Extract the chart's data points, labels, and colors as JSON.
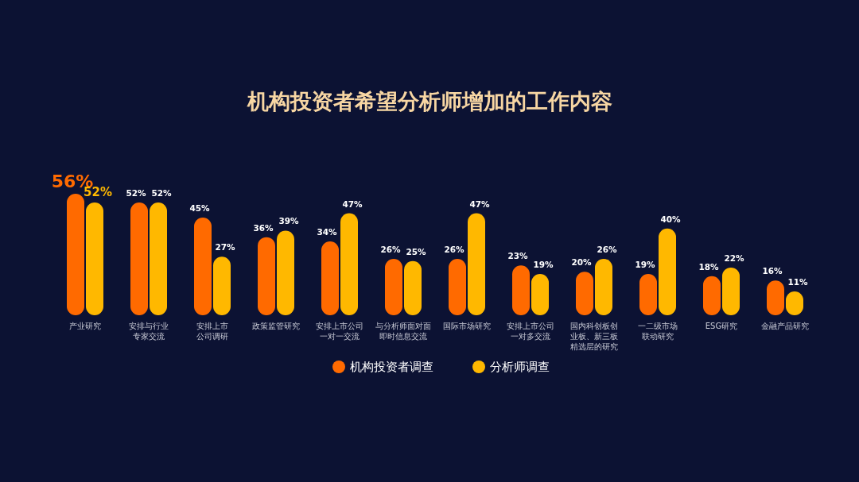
{
  "chart_data": {
    "type": "bar",
    "title": "机构投资者希望分析师增加的工作内容",
    "categories": [
      "产业研究",
      "安排与行业专家交流",
      "安排上市公司调研",
      "政策监管研究",
      "安排上市公司一对一交流",
      "与分析师面对面即时信息交流",
      "国际市场研究",
      "安排上市公司一对多交流",
      "国内科创板创业板、新三板精选层的研究",
      "一二级市场联动研究",
      "ESG研究",
      "金融产品研究"
    ],
    "series": [
      {
        "name": "机构投资者调查",
        "color": "#ff6a00",
        "values": [
          56,
          52,
          45,
          36,
          34,
          26,
          26,
          23,
          20,
          19,
          18,
          16
        ],
        "value_labels": [
          "56%",
          "52%",
          "45%",
          "36%",
          "34%",
          "26%",
          "26%",
          "23%",
          "20%",
          "19%",
          "18%",
          "16%"
        ]
      },
      {
        "name": "分析师调查",
        "color": "#ffb800",
        "values": [
          52,
          52,
          27,
          39,
          47,
          25,
          47,
          19,
          26,
          40,
          22,
          11
        ],
        "value_labels": [
          "52%",
          "52%",
          "27%",
          "39%",
          "47%",
          "25%",
          "47%",
          "19%",
          "26%",
          "40%",
          "22%",
          "11%"
        ]
      }
    ],
    "legend": "bottom",
    "grid": false
  }
}
